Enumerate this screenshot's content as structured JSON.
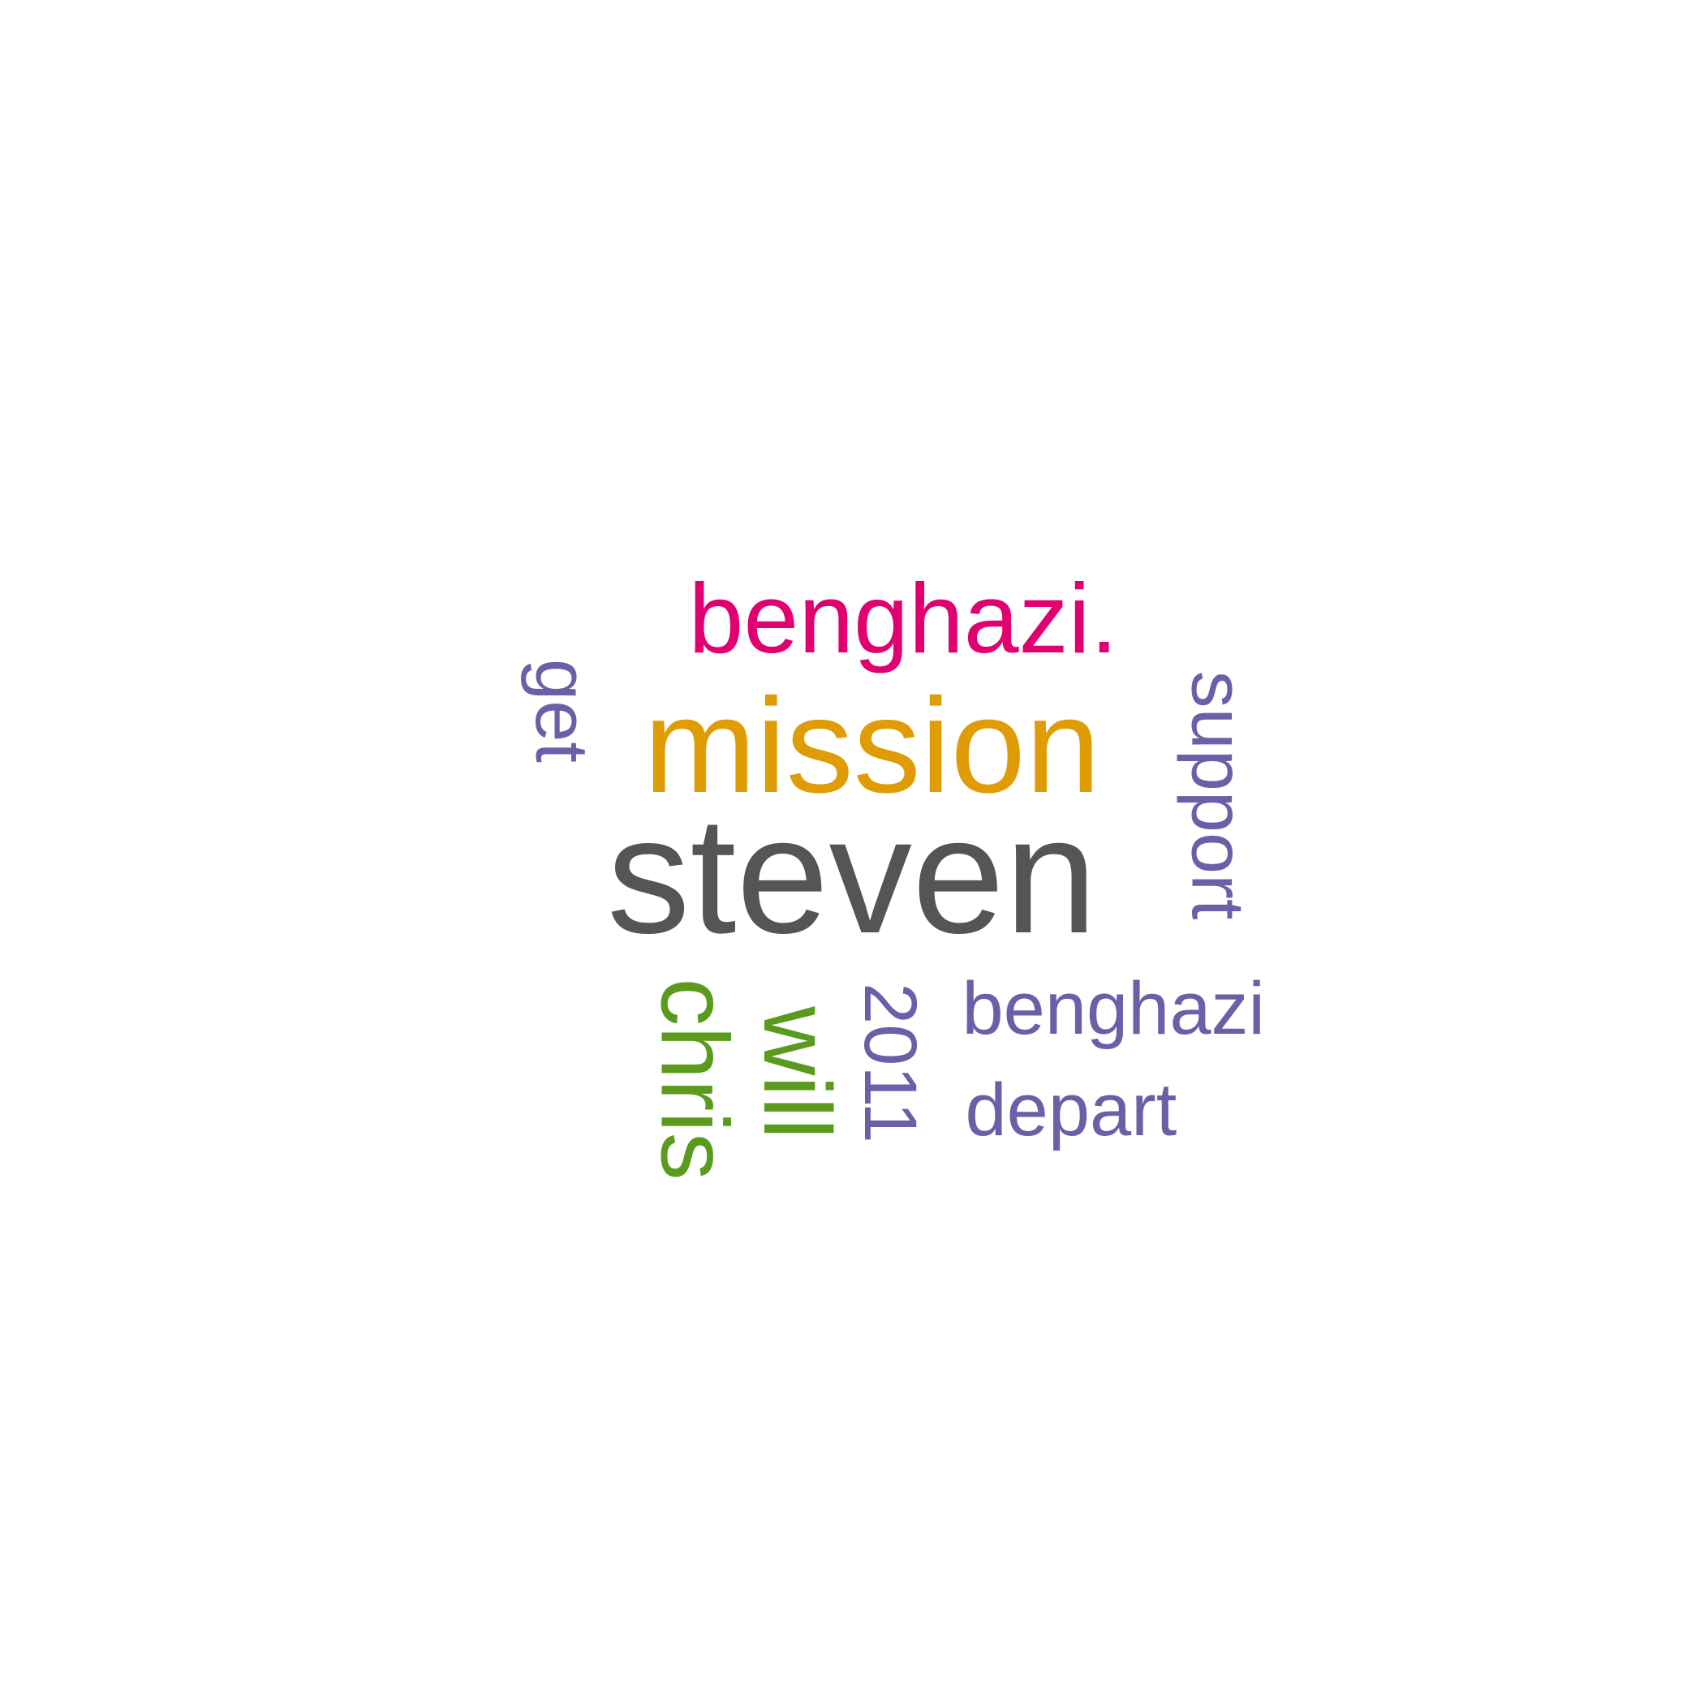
{
  "words": [
    {
      "text": "steven",
      "color": "#555555",
      "rotated": false
    },
    {
      "text": "mission",
      "color": "#DF9C05",
      "rotated": false
    },
    {
      "text": "benghazi.",
      "color": "#E0006F",
      "rotated": false
    },
    {
      "text": "chris",
      "color": "#5A9A1D",
      "rotated": true
    },
    {
      "text": "will",
      "color": "#5A9A1D",
      "rotated": true
    },
    {
      "text": "support",
      "color": "#6D5EA8",
      "rotated": true
    },
    {
      "text": "get",
      "color": "#6D5EA8",
      "rotated": true
    },
    {
      "text": "2011",
      "color": "#6D5EA8",
      "rotated": true
    },
    {
      "text": "benghazi",
      "color": "#6D5EA8",
      "rotated": false
    },
    {
      "text": "depart",
      "color": "#6D5EA8",
      "rotated": false
    }
  ]
}
